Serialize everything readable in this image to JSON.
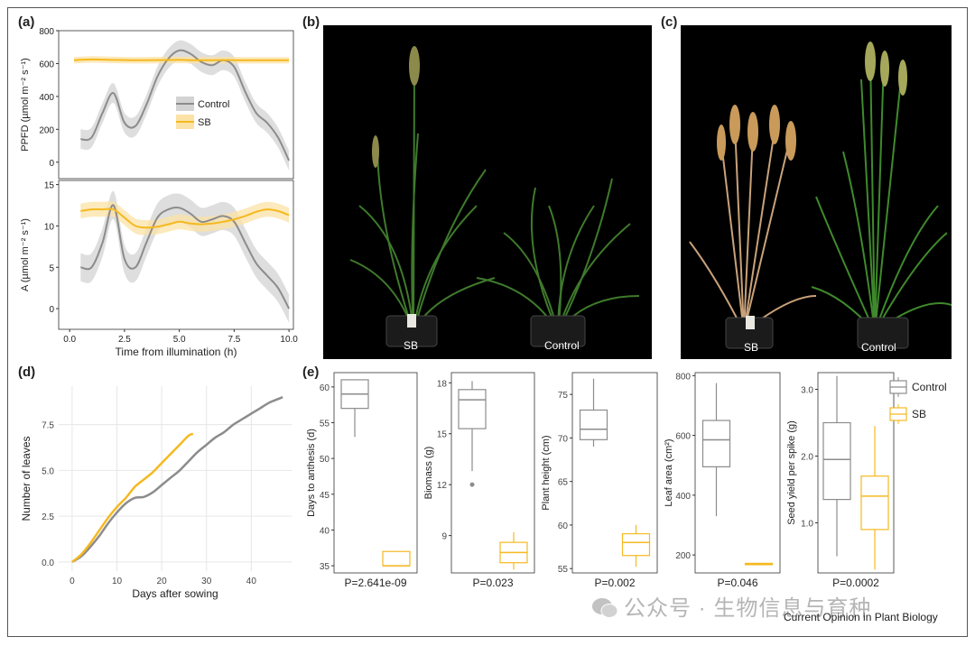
{
  "panel_labels": {
    "a": "(a)",
    "b": "(b)",
    "c": "(c)",
    "d": "(d)",
    "e": "(e)"
  },
  "colors": {
    "control": "#8c8c8c",
    "sb": "#f5b920",
    "control_band": "#d3d3d3",
    "sb_band": "#fbe2a6"
  },
  "photo_b": {
    "sb_label": "SB",
    "control_label": "Control"
  },
  "photo_c": {
    "sb_label": "SB",
    "control_label": "Control"
  },
  "watermark": "公众号 · 生物信息与育种",
  "journal_credit": "Current Opinion in Plant Biology",
  "chart_data": [
    {
      "id": "a_top",
      "type": "line",
      "ylabel": "PPFD (µmol m⁻² s⁻¹)",
      "ylim": [
        -100,
        800
      ],
      "xlim": [
        -0.5,
        10.2
      ],
      "yticks": [
        0,
        200,
        400,
        600,
        800
      ],
      "legend": {
        "placement": "right",
        "entries": [
          "Control",
          "SB"
        ]
      },
      "series": [
        {
          "name": "Control",
          "x": [
            0.5,
            1,
            1.5,
            2,
            2.5,
            3,
            3.5,
            4,
            4.5,
            5,
            5.5,
            6,
            6.5,
            7,
            7.5,
            8,
            8.5,
            9,
            9.5,
            10
          ],
          "y": [
            140,
            150,
            300,
            420,
            240,
            220,
            350,
            520,
            630,
            680,
            660,
            610,
            590,
            620,
            580,
            430,
            300,
            240,
            150,
            10
          ]
        },
        {
          "name": "SB",
          "x": [
            0.2,
            1,
            2,
            3,
            4,
            5,
            6,
            7,
            8,
            9,
            10
          ],
          "y": [
            620,
            625,
            622,
            620,
            621,
            622,
            620,
            621,
            620,
            620,
            620
          ]
        }
      ]
    },
    {
      "id": "a_bottom",
      "type": "line",
      "xlabel": "Time from illumination (h)",
      "ylabel": "A (µmol m⁻² s⁻¹)",
      "ylim": [
        -2.5,
        15.5
      ],
      "xlim": [
        -0.5,
        10.2
      ],
      "yticks": [
        0,
        5,
        10,
        15
      ],
      "xticks": [
        0.0,
        2.5,
        5.0,
        7.5,
        10.0
      ],
      "series": [
        {
          "name": "Control",
          "x": [
            0.5,
            1,
            1.5,
            2,
            2.5,
            3,
            3.5,
            4,
            4.5,
            5,
            5.5,
            6,
            6.5,
            7,
            7.5,
            8,
            8.5,
            9,
            9.5,
            10
          ],
          "y": [
            5,
            5,
            8,
            12.5,
            6,
            5,
            8,
            11,
            12,
            12.2,
            11.5,
            10.5,
            10.8,
            11.2,
            10.5,
            8,
            5.5,
            4,
            2.5,
            0
          ]
        },
        {
          "name": "SB",
          "x": [
            0.5,
            1,
            1.5,
            2,
            2.5,
            3,
            3.5,
            4,
            4.5,
            5,
            5.5,
            6,
            6.5,
            7,
            7.5,
            8,
            8.5,
            9,
            9.5,
            10
          ],
          "y": [
            11.8,
            12,
            12,
            12,
            11,
            10,
            9.8,
            9.9,
            10.2,
            10.5,
            10.3,
            10.2,
            10.3,
            10.5,
            10.8,
            11.2,
            11.7,
            12,
            11.8,
            11.3
          ]
        }
      ]
    },
    {
      "id": "d",
      "type": "line",
      "xlabel": "Days after sowing",
      "ylabel": "Number of leaves",
      "xlim": [
        -3,
        49
      ],
      "ylim": [
        -0.5,
        9.6
      ],
      "xticks": [
        0,
        10,
        20,
        30,
        40
      ],
      "yticks": [
        0.0,
        2.5,
        5.0,
        7.5
      ],
      "series": [
        {
          "name": "Control",
          "x": [
            0,
            2,
            4,
            6,
            8,
            10,
            12,
            14,
            16,
            18,
            20,
            22,
            24,
            26,
            28,
            30,
            32,
            34,
            36,
            38,
            40,
            42,
            44,
            46,
            47
          ],
          "y": [
            0,
            0.3,
            0.8,
            1.4,
            2.1,
            2.7,
            3.2,
            3.5,
            3.55,
            3.8,
            4.2,
            4.6,
            5.0,
            5.5,
            6.0,
            6.4,
            6.8,
            7.1,
            7.5,
            7.8,
            8.1,
            8.4,
            8.7,
            8.9,
            9.0
          ]
        },
        {
          "name": "SB",
          "x": [
            0,
            2,
            4,
            6,
            8,
            10,
            12,
            14,
            16,
            18,
            20,
            22,
            24,
            26,
            27
          ],
          "y": [
            0,
            0.4,
            1.0,
            1.7,
            2.4,
            3.0,
            3.5,
            4.1,
            4.5,
            4.9,
            5.4,
            5.9,
            6.4,
            6.9,
            7.0
          ]
        }
      ]
    },
    {
      "id": "e1",
      "type": "box",
      "ylabel": "Days to anthesis (d)",
      "ylim": [
        34,
        62
      ],
      "yticks": [
        35,
        40,
        45,
        50,
        55,
        60
      ],
      "pvalue": "P=2.641e-09",
      "series": [
        {
          "name": "Control",
          "min": 53,
          "q1": 57,
          "median": 59,
          "q3": 61,
          "max": 61,
          "outliers": []
        },
        {
          "name": "SB",
          "min": 35,
          "q1": 35,
          "median": 35,
          "q3": 37,
          "max": 37,
          "outliers": []
        }
      ]
    },
    {
      "id": "e2",
      "type": "box",
      "ylabel": "Biomass (g)",
      "ylim": [
        6.8,
        18.6
      ],
      "yticks": [
        9,
        12,
        15,
        18
      ],
      "pvalue": "P=0.023",
      "series": [
        {
          "name": "Control",
          "min": 12.8,
          "q1": 15.3,
          "median": 17.0,
          "q3": 17.6,
          "max": 18.1,
          "outliers": [
            12.0
          ]
        },
        {
          "name": "SB",
          "min": 7.0,
          "q1": 7.4,
          "median": 8.0,
          "q3": 8.6,
          "max": 9.2,
          "outliers": []
        }
      ]
    },
    {
      "id": "e3",
      "type": "box",
      "ylabel": "Plant height (cm)",
      "ylim": [
        54.5,
        77.5
      ],
      "yticks": [
        55,
        60,
        65,
        70,
        75
      ],
      "pvalue": "P=0.002",
      "series": [
        {
          "name": "Control",
          "min": 69,
          "q1": 69.8,
          "median": 71,
          "q3": 73.2,
          "max": 76.8,
          "outliers": []
        },
        {
          "name": "SB",
          "min": 55.2,
          "q1": 56.5,
          "median": 58,
          "q3": 59,
          "max": 60,
          "outliers": []
        }
      ]
    },
    {
      "id": "e4",
      "type": "box",
      "ylabel": "Leaf area (cm²)",
      "ylim": [
        140,
        810
      ],
      "yticks": [
        200,
        400,
        600,
        800
      ],
      "pvalue": "P=0.046",
      "series": [
        {
          "name": "Control",
          "min": 330,
          "q1": 495,
          "median": 585,
          "q3": 650,
          "max": 775,
          "outliers": []
        },
        {
          "name": "SB",
          "min": 168,
          "q1": 168,
          "median": 170,
          "q3": 172,
          "max": 174,
          "outliers": []
        }
      ]
    },
    {
      "id": "e5",
      "type": "box",
      "ylabel": "Seed yield per spike (g)",
      "ylim": [
        0.25,
        3.25
      ],
      "yticks": [
        1.0,
        2.0,
        3.0
      ],
      "pvalue": "P=0.0002",
      "legend": {
        "placement": "top-right",
        "entries": [
          "Control",
          "SB"
        ]
      },
      "series": [
        {
          "name": "Control",
          "min": 0.5,
          "q1": 1.35,
          "median": 1.95,
          "q3": 2.5,
          "max": 3.2,
          "outliers": []
        },
        {
          "name": "SB",
          "min": 0.3,
          "q1": 0.9,
          "median": 1.4,
          "q3": 1.7,
          "max": 2.45,
          "outliers": []
        }
      ]
    }
  ]
}
